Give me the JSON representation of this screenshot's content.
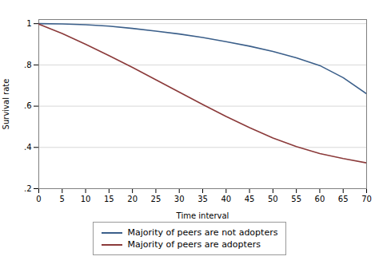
{
  "chart_data": {
    "type": "line",
    "xlabel": "Time interval",
    "ylabel": "Survival rate",
    "x": [
      0,
      5,
      10,
      15,
      20,
      25,
      30,
      35,
      40,
      45,
      50,
      55,
      60,
      65,
      70
    ],
    "series": [
      {
        "name": "Majority of peers are not adopters",
        "color": "#3b5f8a",
        "values": [
          1.0,
          0.999,
          0.995,
          0.988,
          0.977,
          0.964,
          0.95,
          0.933,
          0.913,
          0.891,
          0.865,
          0.834,
          0.797,
          0.738,
          0.66
        ]
      },
      {
        "name": "Majority of peers are adopters",
        "color": "#8b3a3a",
        "values": [
          0.998,
          0.952,
          0.9,
          0.845,
          0.788,
          0.728,
          0.668,
          0.608,
          0.55,
          0.496,
          0.446,
          0.404,
          0.37,
          0.346,
          0.325
        ]
      }
    ],
    "xlim": [
      0,
      70
    ],
    "ylim": [
      0.2,
      1.02
    ],
    "xticks": [
      0,
      5,
      10,
      15,
      20,
      25,
      30,
      35,
      40,
      45,
      50,
      55,
      60,
      65,
      70
    ],
    "yticks": [
      {
        "value": 0.2,
        "label": ".2"
      },
      {
        "value": 0.4,
        "label": ".4"
      },
      {
        "value": 0.6,
        "label": ".6"
      },
      {
        "value": 0.8,
        "label": ".8"
      },
      1
    ],
    "grid": true,
    "legend": "bottom"
  }
}
